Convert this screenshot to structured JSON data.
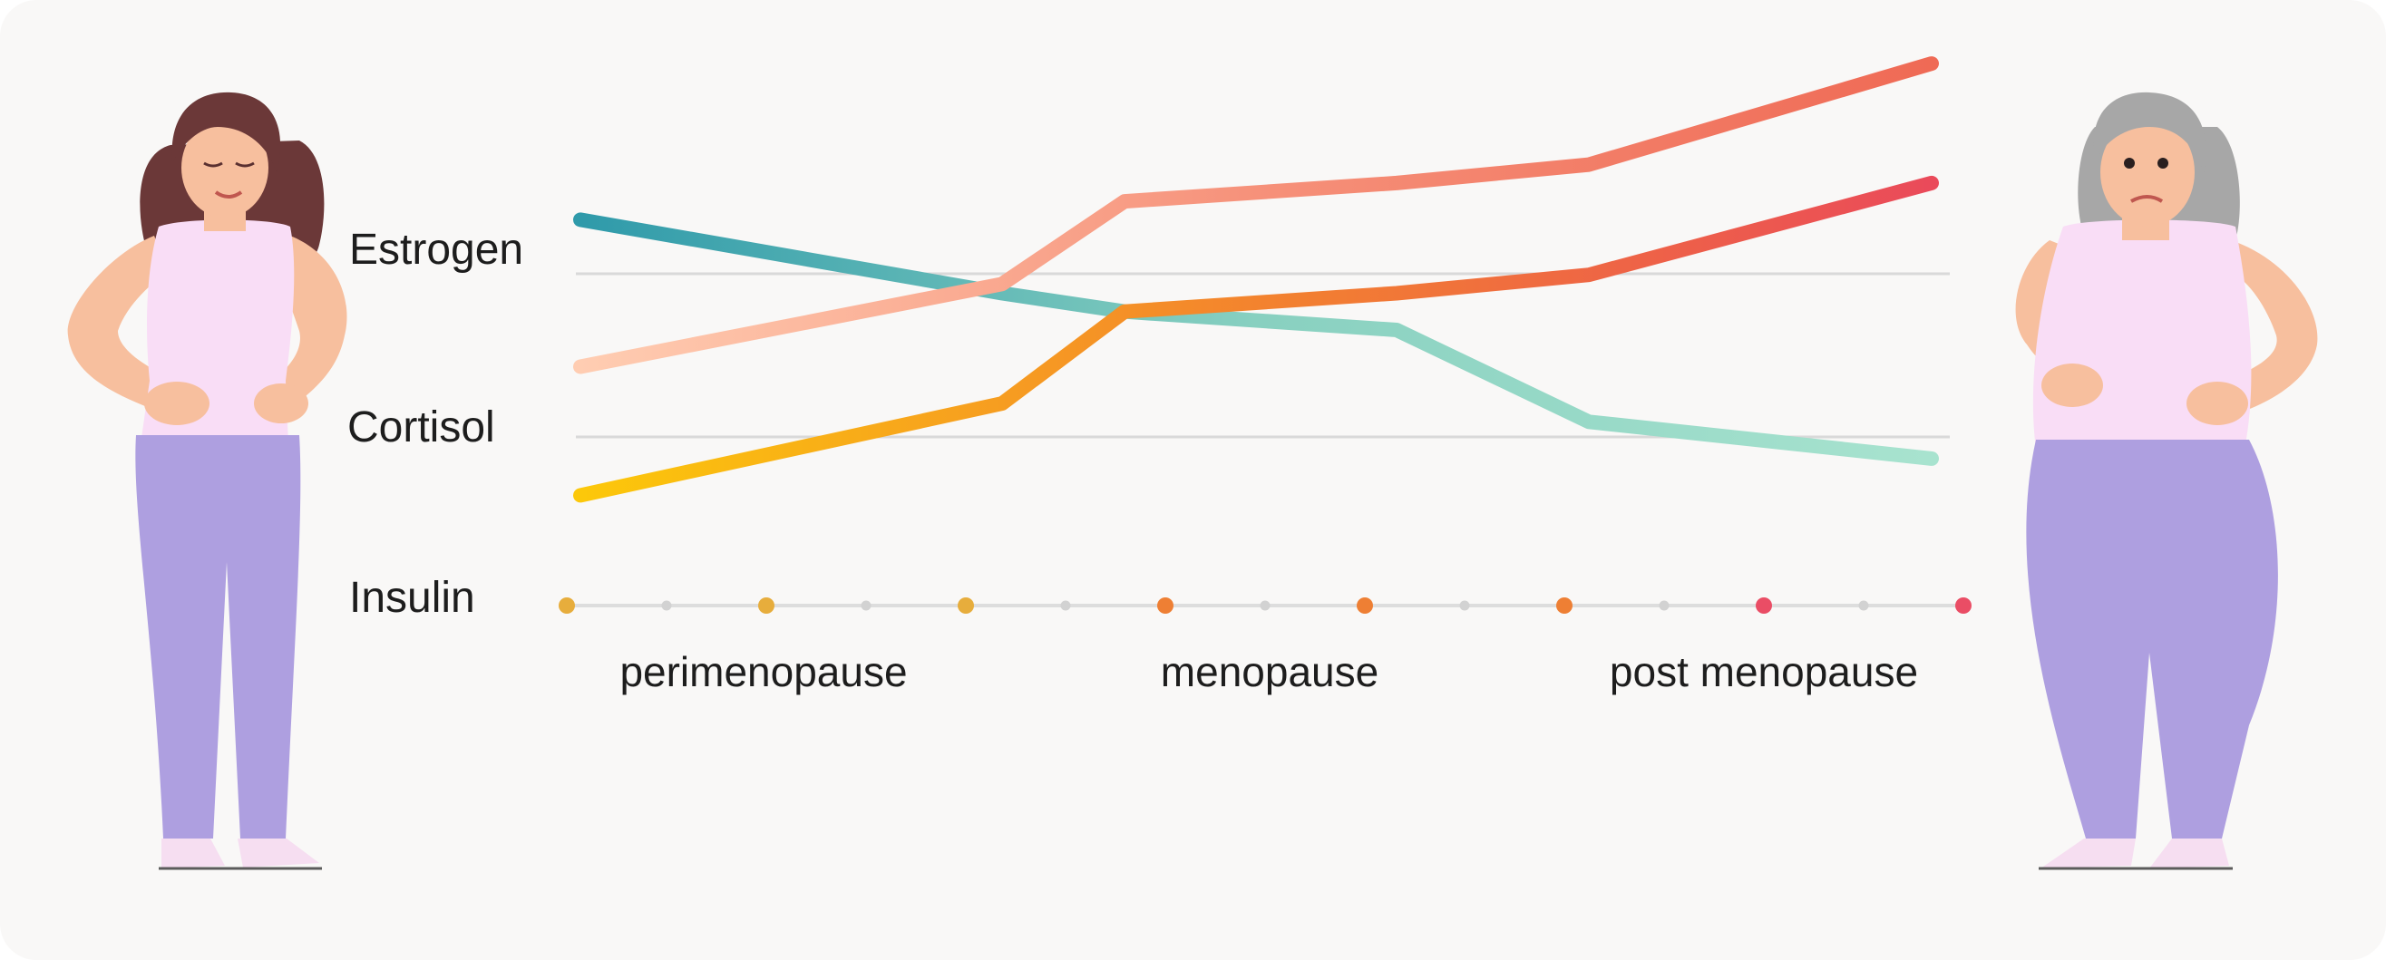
{
  "chart_data": {
    "type": "line",
    "row_labels": [
      "Estrogen",
      "Cortisol",
      "Insulin"
    ],
    "phases": [
      "perimenopause",
      "menopause",
      "post menopause"
    ],
    "x": [
      0,
      1,
      2,
      3,
      4,
      5
    ],
    "series": [
      {
        "name": "Estrogen",
        "values": [
          2.1,
          1.7,
          1.6,
          1.5,
          1.0,
          0.8
        ],
        "colors": [
          "#2f9aaa",
          "#88d0c0",
          "#a8e3cf"
        ]
      },
      {
        "name": "Cortisol",
        "values": [
          1.3,
          1.75,
          2.2,
          2.3,
          2.4,
          2.95
        ],
        "colors": [
          "#ffcdb2",
          "#f6917a",
          "#ef6a55"
        ]
      },
      {
        "name": "Insulin",
        "values": [
          0.6,
          1.1,
          1.6,
          1.7,
          1.8,
          2.3
        ],
        "colors": [
          "#fcc80a",
          "#f3832e",
          "#ea4a5a"
        ]
      }
    ],
    "ylim": [
      0,
      3
    ],
    "grid_rows": 2,
    "timeline_marker_colors": [
      "#e7ad3c",
      "#e7ad3c",
      "#e7ad3c",
      "#ee7f34",
      "#ee7f34",
      "#ee7f34",
      "#ea4d65",
      "#ea4d65"
    ],
    "legend": "none"
  },
  "illustrations": {
    "left": "young-woman-figure",
    "right": "older-woman-figure"
  }
}
